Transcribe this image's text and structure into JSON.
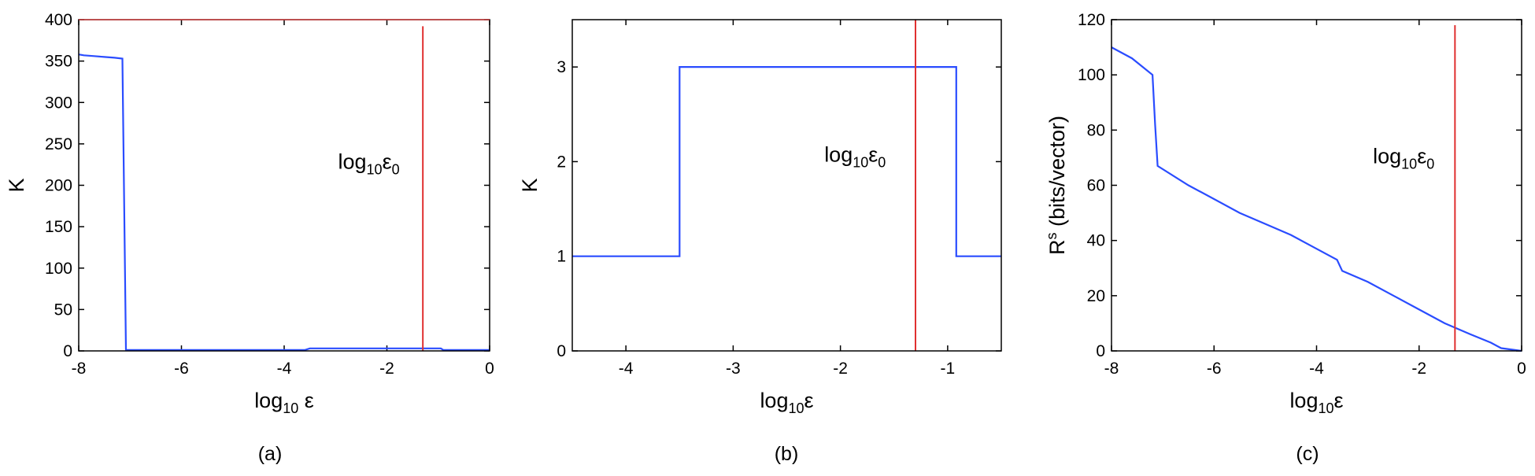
{
  "chart_data": [
    {
      "type": "line",
      "caption": "(a)",
      "xlabel": "log",
      "xlabel_sub": "10",
      "xlabel_tail": " ε",
      "ylabel": "K",
      "ylabel_sup": "",
      "ylabel_tail": "",
      "xlim": [
        -8,
        0
      ],
      "ylim": [
        0,
        400
      ],
      "xticks": [
        "-8",
        "-6",
        "-4",
        "-2",
        "0"
      ],
      "xtick_values": [
        -8,
        -6,
        -4,
        -2,
        0
      ],
      "yticks": [
        "0",
        "50",
        "100",
        "150",
        "200",
        "250",
        "300",
        "350",
        "400"
      ],
      "ytick_values": [
        0,
        50,
        100,
        150,
        200,
        250,
        300,
        350,
        400
      ],
      "series": [
        {
          "color": "#2a4cff",
          "x": [
            -8,
            -7.9,
            -7.7,
            -7.5,
            -7.3,
            -7.15,
            -7.08,
            -6.5,
            -5,
            -3.6,
            -3.5,
            -2.5,
            -1.3,
            -0.95,
            -0.9,
            -0.5,
            0
          ],
          "y": [
            358,
            357,
            356,
            355,
            354,
            353,
            1,
            1,
            1,
            1,
            3,
            3,
            3,
            3,
            1,
            1,
            1
          ]
        }
      ],
      "vline": {
        "x": -1.3,
        "ymax": 392,
        "color": "#e03030"
      },
      "annotation": {
        "text": "log",
        "sub": "10",
        "base": "ε",
        "base_sub": "0",
        "x": -2.95,
        "y": 220
      }
    },
    {
      "type": "line",
      "caption": "(b)",
      "xlabel": "log",
      "xlabel_sub": "10",
      "xlabel_tail": "ε",
      "ylabel": "K",
      "ylabel_sup": "",
      "ylabel_tail": "",
      "xlim": [
        -4.5,
        -0.5
      ],
      "ylim": [
        0,
        3.5
      ],
      "xticks": [
        "-4",
        "-3",
        "-2",
        "-1"
      ],
      "xtick_values": [
        -4,
        -3,
        -2,
        -1
      ],
      "yticks": [
        "0",
        "1",
        "2",
        "3"
      ],
      "ytick_values": [
        0,
        1,
        2,
        3
      ],
      "series": [
        {
          "color": "#2a4cff",
          "x": [
            -4.5,
            -3.5,
            -3.5,
            -0.92,
            -0.92,
            -0.5
          ],
          "y": [
            1,
            1,
            3,
            3,
            1,
            1
          ]
        }
      ],
      "vline": {
        "x": -1.3,
        "ymax": 3.5,
        "color": "#e03030"
      },
      "annotation": {
        "text": "log",
        "sub": "10",
        "base": "ε",
        "base_sub": "0",
        "x": -2.15,
        "y": 2.0
      }
    },
    {
      "type": "line",
      "caption": "(c)",
      "xlabel": "log",
      "xlabel_sub": "10",
      "xlabel_tail": "ε",
      "ylabel": "R",
      "ylabel_sup": "s",
      "ylabel_tail": " (bits/vector)",
      "xlim": [
        -8,
        0
      ],
      "ylim": [
        0,
        120
      ],
      "xticks": [
        "-8",
        "-6",
        "-4",
        "-2",
        "0"
      ],
      "xtick_values": [
        -8,
        -6,
        -4,
        -2,
        0
      ],
      "yticks": [
        "0",
        "20",
        "40",
        "60",
        "80",
        "100",
        "120"
      ],
      "ytick_values": [
        0,
        20,
        40,
        60,
        80,
        100,
        120
      ],
      "series": [
        {
          "color": "#2a4cff",
          "x": [
            -8,
            -7.6,
            -7.2,
            -7.15,
            -7.1,
            -6.5,
            -6,
            -5.5,
            -5,
            -4.5,
            -4,
            -3.6,
            -3.5,
            -3,
            -2.5,
            -2,
            -1.5,
            -1,
            -0.6,
            -0.4,
            0
          ],
          "y": [
            110,
            106,
            100,
            82,
            67,
            60,
            55,
            50,
            46,
            42,
            37,
            33,
            29,
            25,
            20,
            15,
            10,
            6,
            3,
            1,
            0
          ]
        }
      ],
      "vline": {
        "x": -1.3,
        "ymax": 118,
        "color": "#e03030"
      },
      "annotation": {
        "text": "log",
        "sub": "10",
        "base": "ε",
        "base_sub": "0",
        "x": -2.9,
        "y": 68
      }
    }
  ]
}
